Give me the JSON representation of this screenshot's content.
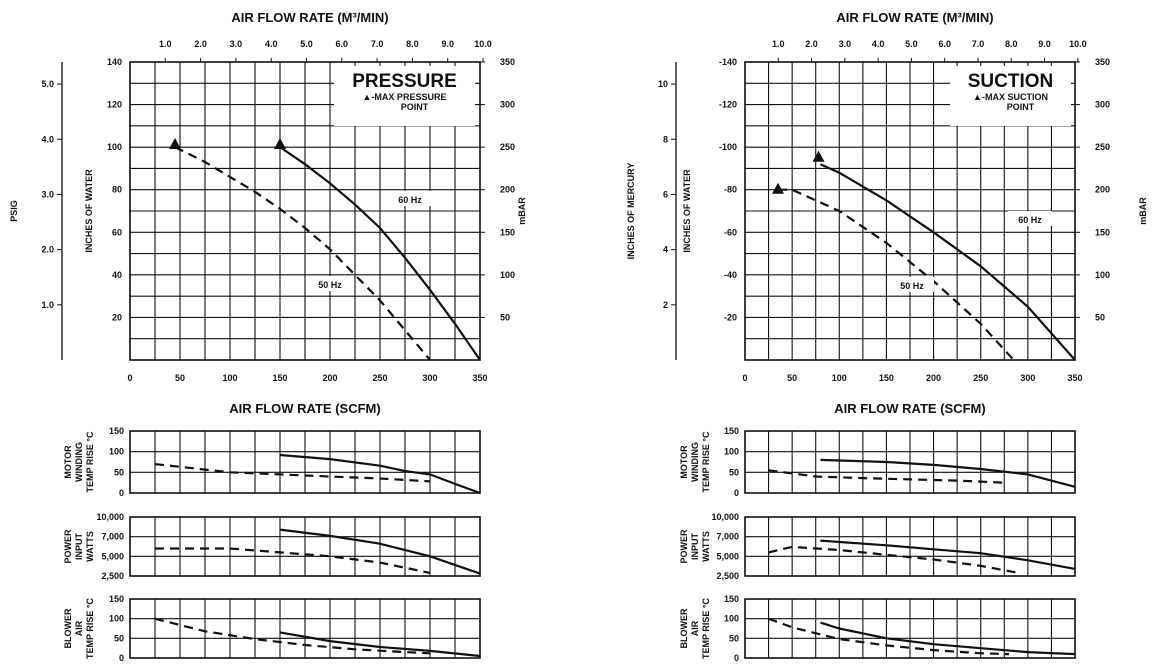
{
  "chart_data": [
    {
      "type": "line",
      "title": "PRESSURE",
      "note": "▲-MAX PRESSURE POINT",
      "top_axis": {
        "label": "AIR FLOW RATE (M³/MIN)",
        "ticks": [
          "1.0",
          "2.0",
          "3.0",
          "4.0",
          "5.0",
          "6.0",
          "7.0",
          "8.0",
          "9.0",
          "10.0"
        ]
      },
      "bottom_axis": {
        "label": "AIR FLOW RATE (SCFM)",
        "ticks": [
          "0",
          "50",
          "100",
          "150",
          "200",
          "250",
          "300",
          "350"
        ],
        "xlim": [
          0,
          350
        ]
      },
      "left_axis": {
        "label": "INCHES OF WATER",
        "ticks": [
          "20",
          "40",
          "60",
          "80",
          "100",
          "120",
          "140"
        ],
        "ylim": [
          0,
          140
        ]
      },
      "far_left_axis": {
        "label": "PSIG",
        "ticks": [
          "1.0",
          "2.0",
          "3.0",
          "4.0",
          "5.0"
        ]
      },
      "right_axis": {
        "label": "mBAR",
        "ticks": [
          "50",
          "100",
          "150",
          "200",
          "250",
          "300",
          "350"
        ]
      },
      "series": [
        {
          "name": "60 Hz",
          "style": "solid",
          "x": [
            150,
            175,
            200,
            225,
            250,
            275,
            300,
            325,
            350
          ],
          "y": [
            100,
            92,
            83,
            73,
            62,
            48,
            33,
            17,
            0
          ]
        },
        {
          "name": "50 Hz",
          "style": "dashed",
          "x": [
            45,
            75,
            100,
            125,
            150,
            175,
            200,
            225,
            250,
            275,
            300
          ],
          "y": [
            100,
            93,
            86,
            79,
            71,
            62,
            52,
            40,
            28,
            14,
            0
          ]
        }
      ],
      "markers": [
        {
          "x": 45,
          "y": 101
        },
        {
          "x": 150,
          "y": 101
        }
      ],
      "sub_panels": [
        {
          "ylabel": "MOTOR WINDING TEMP RISE °C",
          "ticks": [
            "0",
            "50",
            "100",
            "150"
          ],
          "ylim": [
            0,
            150
          ],
          "series": [
            {
              "name": "60 Hz",
              "style": "solid",
              "x": [
                150,
                200,
                250,
                275,
                300,
                325,
                350
              ],
              "y": [
                92,
                82,
                66,
                53,
                45,
                22,
                0
              ]
            },
            {
              "name": "50 Hz",
              "style": "dashed",
              "x": [
                25,
                100,
                150,
                200,
                250,
                300
              ],
              "y": [
                70,
                50,
                45,
                40,
                35,
                28
              ]
            }
          ]
        },
        {
          "ylabel": "POWER INPUT WATTS",
          "ticks": [
            "2,500",
            "5,000",
            "7,000",
            "10,000"
          ],
          "ylim": [
            2500,
            10000
          ],
          "series": [
            {
              "name": "60 Hz",
              "style": "solid",
              "x": [
                150,
                200,
                250,
                300,
                350
              ],
              "y": [
                8400,
                7600,
                6600,
                5000,
                2800
              ]
            },
            {
              "name": "50 Hz",
              "style": "dashed",
              "x": [
                25,
                100,
                150,
                200,
                250,
                300
              ],
              "y": [
                6000,
                6000,
                5500,
                5000,
                4200,
                2900
              ]
            }
          ]
        },
        {
          "ylabel": "BLOWER AIR TEMP RISE °C",
          "ticks": [
            "0",
            "50",
            "100",
            "150"
          ],
          "ylim": [
            0,
            150
          ],
          "series": [
            {
              "name": "60 Hz",
              "style": "solid",
              "x": [
                150,
                200,
                250,
                300,
                350
              ],
              "y": [
                65,
                43,
                28,
                18,
                5
              ]
            },
            {
              "name": "50 Hz",
              "style": "dashed",
              "x": [
                25,
                75,
                125,
                175,
                225,
                275,
                300
              ],
              "y": [
                100,
                68,
                48,
                33,
                22,
                15,
                12
              ]
            }
          ]
        }
      ]
    },
    {
      "type": "line",
      "title": "SUCTION",
      "note": "▲-MAX SUCTION POINT",
      "top_axis": {
        "label": "AIR FLOW RATE (M³/MIN)",
        "ticks": [
          "1.0",
          "2.0",
          "3.0",
          "4.0",
          "5.0",
          "6.0",
          "7.0",
          "8.0",
          "9.0",
          "10.0"
        ]
      },
      "bottom_axis": {
        "label": "AIR FLOW RATE (SCFM)",
        "ticks": [
          "0",
          "50",
          "100",
          "150",
          "200",
          "250",
          "300",
          "350"
        ],
        "xlim": [
          0,
          350
        ]
      },
      "left_axis": {
        "label": "INCHES OF WATER",
        "ticks": [
          "-20",
          "-40",
          "-60",
          "-80",
          "-100",
          "-120",
          "-140"
        ],
        "ylim": [
          0,
          -140
        ]
      },
      "far_left_axis": {
        "label": "INCHES OF MERCURY",
        "ticks": [
          "2",
          "4",
          "6",
          "8",
          "10"
        ]
      },
      "right_axis": {
        "label": "mBAR",
        "ticks": [
          "50",
          "100",
          "150",
          "200",
          "250",
          "300",
          "350"
        ]
      },
      "series": [
        {
          "name": "60 Hz",
          "style": "solid",
          "x": [
            80,
            100,
            150,
            200,
            250,
            300,
            350
          ],
          "y": [
            -92,
            -88,
            -75,
            -60,
            -44,
            -25,
            0
          ]
        },
        {
          "name": "50 Hz",
          "style": "dashed",
          "x": [
            35,
            50,
            100,
            150,
            200,
            250,
            285
          ],
          "y": [
            -80,
            -80,
            -70,
            -55,
            -37,
            -17,
            0
          ]
        }
      ],
      "markers": [
        {
          "x": 35,
          "y": -80
        },
        {
          "x": 78,
          "y": -95
        }
      ],
      "sub_panels": [
        {
          "ylabel": "MOTOR WINDING TEMP RISE °C",
          "ticks": [
            "0",
            "50",
            "100",
            "150"
          ],
          "ylim": [
            0,
            150
          ],
          "series": [
            {
              "name": "60 Hz",
              "style": "solid",
              "x": [
                80,
                150,
                200,
                250,
                300,
                350
              ],
              "y": [
                80,
                75,
                68,
                58,
                45,
                15
              ]
            },
            {
              "name": "50 Hz",
              "style": "dashed",
              "x": [
                25,
                75,
                125,
                175,
                225,
                275
              ],
              "y": [
                55,
                40,
                36,
                33,
                30,
                25
              ]
            }
          ]
        },
        {
          "ylabel": "POWER INPUT WATTS",
          "ticks": [
            "2,500",
            "5,000",
            "7,000",
            "10,000"
          ],
          "ylim": [
            2500,
            10000
          ],
          "series": [
            {
              "name": "60 Hz",
              "style": "solid",
              "x": [
                80,
                150,
                200,
                250,
                300,
                350
              ],
              "y": [
                7000,
                6400,
                5900,
                5400,
                4500,
                3400
              ]
            },
            {
              "name": "50 Hz",
              "style": "dashed",
              "x": [
                25,
                50,
                100,
                150,
                200,
                250,
                290
              ],
              "y": [
                5500,
                6200,
                5800,
                5200,
                4600,
                3800,
                2900
              ]
            }
          ]
        },
        {
          "ylabel": "BLOWER AIR TEMP RISE °C",
          "ticks": [
            "0",
            "50",
            "100",
            "150"
          ],
          "ylim": [
            0,
            150
          ],
          "series": [
            {
              "name": "60 Hz",
              "style": "solid",
              "x": [
                80,
                100,
                150,
                200,
                250,
                300,
                350
              ],
              "y": [
                90,
                75,
                50,
                35,
                25,
                15,
                10
              ]
            },
            {
              "name": "50 Hz",
              "style": "dashed",
              "x": [
                25,
                50,
                100,
                150,
                200,
                250,
                280
              ],
              "y": [
                100,
                78,
                48,
                32,
                20,
                12,
                10
              ]
            }
          ]
        }
      ]
    }
  ]
}
